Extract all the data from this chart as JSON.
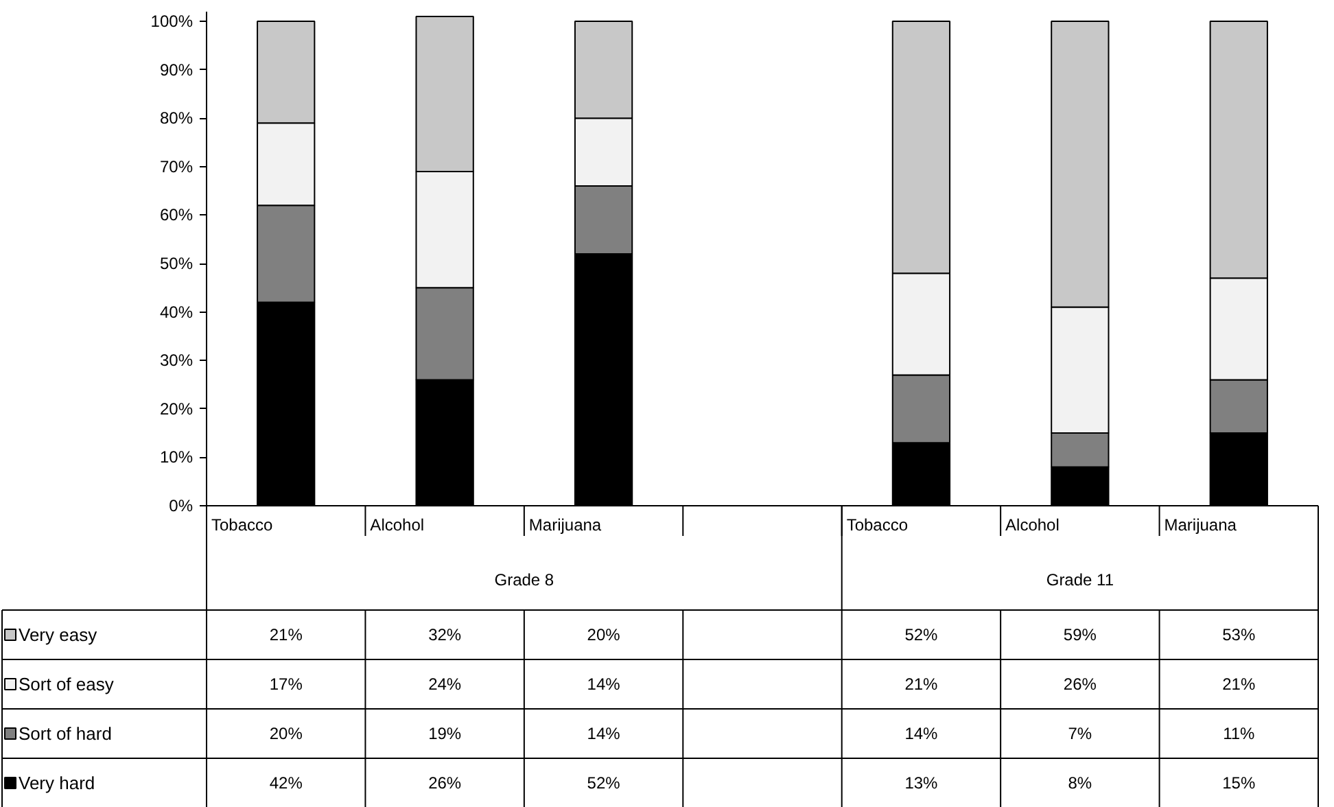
{
  "chart_data": {
    "type": "bar",
    "stacked": true,
    "categories": [
      "Tobacco",
      "Alcohol",
      "Marijuana",
      null,
      "Tobacco",
      "Alcohol",
      "Marijuana"
    ],
    "series": [
      {
        "name": "Very hard",
        "color": "#000000",
        "values": [
          42,
          26,
          52,
          null,
          13,
          8,
          15
        ],
        "value_labels": [
          "42%",
          "26%",
          "52%",
          null,
          "13%",
          "8%",
          "15%"
        ]
      },
      {
        "name": "Sort of hard",
        "color": "#808080",
        "values": [
          20,
          19,
          14,
          null,
          14,
          7,
          11
        ],
        "value_labels": [
          "20%",
          "19%",
          "14%",
          null,
          "14%",
          "7%",
          "11%"
        ]
      },
      {
        "name": "Sort of easy",
        "color": "#f2f2f2",
        "values": [
          17,
          24,
          14,
          null,
          21,
          26,
          21
        ],
        "value_labels": [
          "17%",
          "24%",
          "14%",
          null,
          "21%",
          "26%",
          "21%"
        ]
      },
      {
        "name": "Very easy",
        "color": "#c8c8c8",
        "values": [
          21,
          32,
          20,
          null,
          52,
          59,
          53
        ],
        "value_labels": [
          "21%",
          "32%",
          "20%",
          null,
          "52%",
          "59%",
          "53%"
        ]
      }
    ],
    "annotations": [
      "Grade 8",
      "Grade 11"
    ],
    "ylim": [
      0,
      102
    ],
    "yticks": [
      {
        "value": 0,
        "label": "0%"
      },
      {
        "value": 10,
        "label": "10%"
      },
      {
        "value": 20,
        "label": "20%"
      },
      {
        "value": 30,
        "label": "30%"
      },
      {
        "value": 40,
        "label": "40%"
      },
      {
        "value": 50,
        "label": "50%"
      },
      {
        "value": 60,
        "label": "60%"
      },
      {
        "value": 70,
        "label": "70%"
      },
      {
        "value": 80,
        "label": "80%"
      },
      {
        "value": 90,
        "label": "90%"
      },
      {
        "value": 100,
        "label": "100%"
      }
    ],
    "legend": "bottom"
  }
}
